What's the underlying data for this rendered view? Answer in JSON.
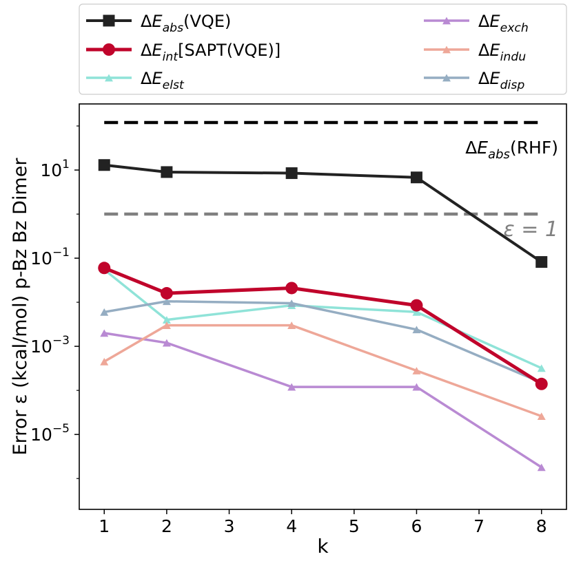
{
  "chart_data": {
    "type": "line",
    "ylabel": "Error ε (kcal/mol) p-Bz Bz Dimer",
    "xlabel": "k",
    "xlim": [
      0.6,
      8.4
    ],
    "ylim_log10": [
      -6.7,
      2.5
    ],
    "yscale": "log",
    "xticks": [
      1,
      2,
      3,
      4,
      5,
      6,
      7,
      8
    ],
    "yticks": [
      {
        "exp": 1,
        "base": "10",
        "sup": "1"
      },
      {
        "exp": -1,
        "base": "10",
        "sup": "−1"
      },
      {
        "exp": -3,
        "base": "10",
        "sup": "−3"
      },
      {
        "exp": -5,
        "base": "10",
        "sup": "−5"
      }
    ],
    "reference_lines": [
      {
        "name": "ref-rhf",
        "y": 120,
        "color": "#000000",
        "label_main": "ΔE",
        "label_sub": "abs",
        "label_tail": "(RHF)"
      },
      {
        "name": "ref-eps",
        "y": 1.0,
        "color": "#808080",
        "label_main": "ε = 1"
      }
    ],
    "series": [
      {
        "key": "elst",
        "label_main": "ΔE",
        "label_sub": "elst",
        "label_tail": "",
        "color": "#8fe3d8",
        "marker": "triangle",
        "width": 3.5,
        "x": [
          1,
          2,
          4,
          6,
          8
        ],
        "values": [
          0.055,
          0.004,
          0.0085,
          0.006,
          0.00032
        ]
      },
      {
        "key": "exch",
        "label_main": "ΔE",
        "label_sub": "exch",
        "label_tail": "",
        "color": "#b98ad3",
        "marker": "triangle",
        "width": 3.5,
        "x": [
          1,
          2,
          4,
          6,
          8
        ],
        "values": [
          0.002,
          0.0012,
          0.00012,
          0.00012,
          1.8e-06
        ]
      },
      {
        "key": "indu",
        "label_main": "ΔE",
        "label_sub": "indu",
        "label_tail": "",
        "color": "#eea798",
        "marker": "triangle",
        "width": 3.5,
        "x": [
          1,
          2,
          4,
          6,
          8
        ],
        "values": [
          0.00045,
          0.003,
          0.003,
          0.00028,
          2.6e-05
        ]
      },
      {
        "key": "disp",
        "label_main": "ΔE",
        "label_sub": "disp",
        "label_tail": "",
        "color": "#95adc2",
        "marker": "triangle",
        "width": 3.5,
        "x": [
          1,
          2,
          4,
          6,
          8
        ],
        "values": [
          0.006,
          0.0105,
          0.0095,
          0.0024,
          0.00015
        ]
      },
      {
        "key": "int",
        "label_main": "ΔE",
        "label_sub": "int",
        "label_tail": "[SAPT(VQE)]",
        "color": "#c0042b",
        "marker": "circle",
        "width": 5,
        "x": [
          1,
          2,
          4,
          6,
          8
        ],
        "values": [
          0.06,
          0.016,
          0.021,
          0.0085,
          0.00014
        ]
      },
      {
        "key": "abs",
        "label_main": "ΔE",
        "label_sub": "abs",
        "label_tail": "(VQE)",
        "color": "#222222",
        "marker": "square",
        "width": 4,
        "x": [
          1,
          2,
          4,
          6,
          8
        ],
        "values": [
          13,
          9,
          8.5,
          6.8,
          0.082
        ]
      }
    ],
    "legend_order": [
      "abs",
      "int",
      "elst",
      "exch",
      "indu",
      "disp"
    ]
  }
}
